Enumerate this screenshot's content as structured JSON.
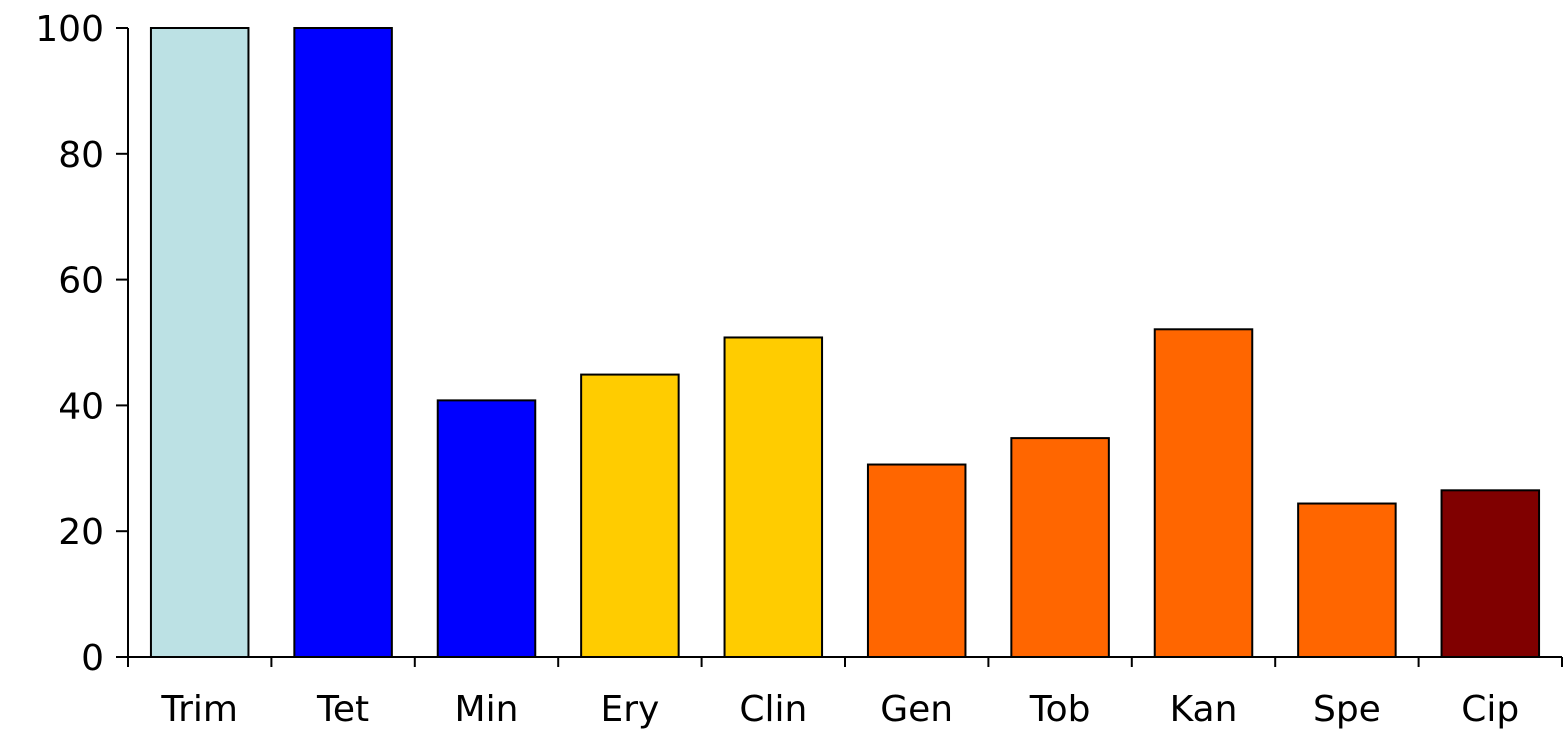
{
  "chart_data": {
    "type": "bar",
    "title": "",
    "xlabel": "",
    "ylabel": "",
    "categories": [
      "Trim",
      "Tet",
      "Min",
      "Ery",
      "Clin",
      "Gen",
      "Tob",
      "Kan",
      "Spe",
      "Cip"
    ],
    "values": [
      100,
      100,
      40.8,
      44.9,
      50.8,
      30.6,
      34.8,
      52.1,
      24.4,
      26.5
    ],
    "colors": [
      "#bce1e4",
      "#0000ff",
      "#0000ff",
      "#ffcc00",
      "#ffcc00",
      "#ff6600",
      "#ff6600",
      "#ff6600",
      "#ff6600",
      "#800000"
    ],
    "ylim": [
      0,
      100
    ],
    "yticks": [
      0,
      20,
      40,
      60,
      80,
      100
    ],
    "grid": false,
    "legend": "none"
  }
}
